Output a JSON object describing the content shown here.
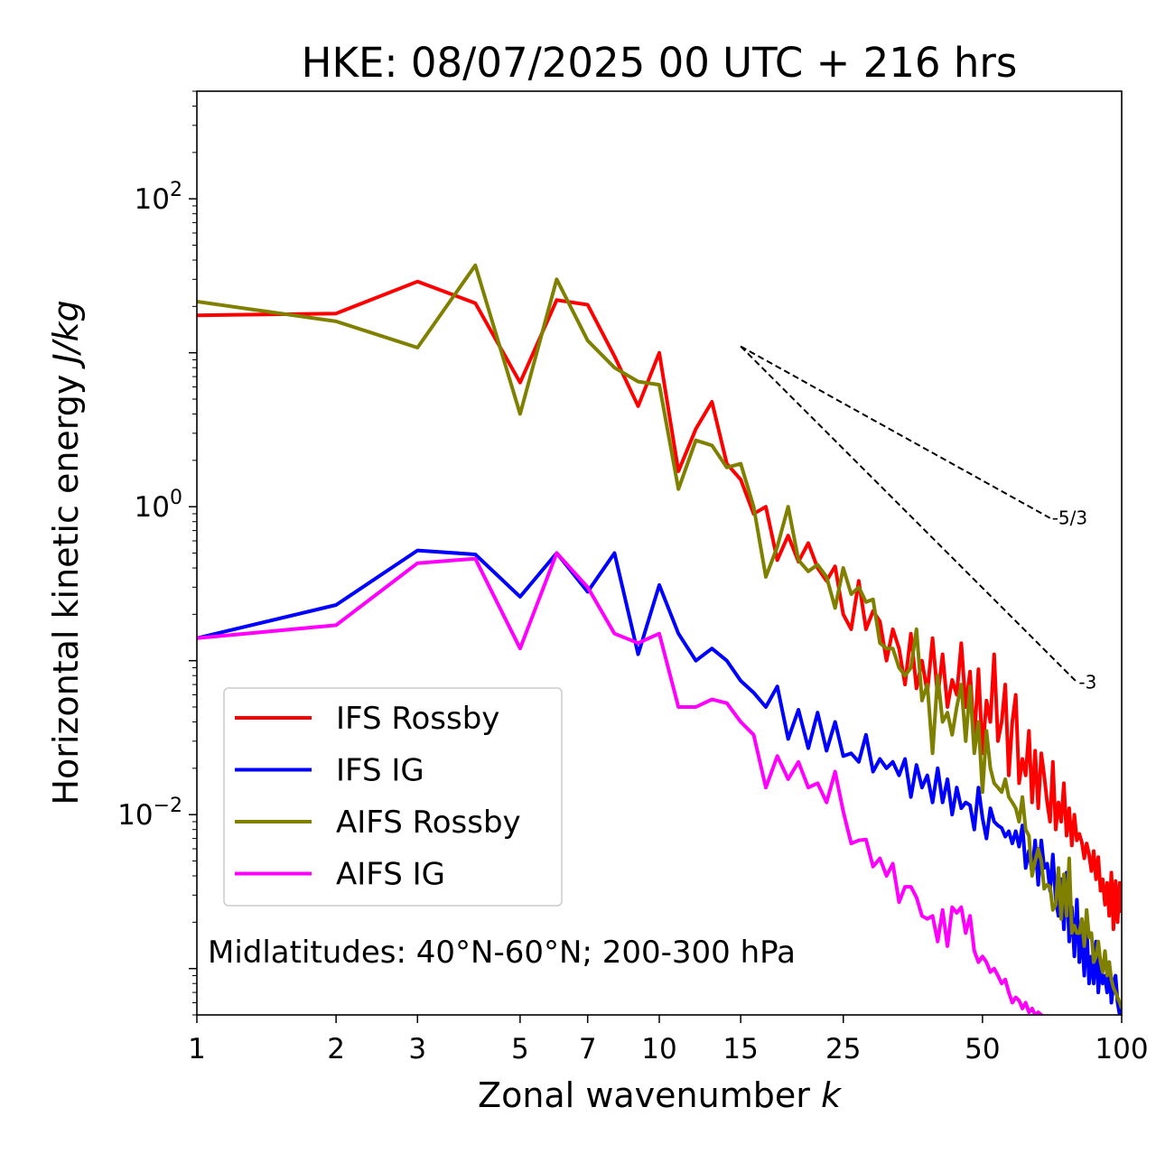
{
  "chart_data": {
    "type": "line",
    "title": "HKE: 08/07/2025 00 UTC + 216 hrs",
    "xlabel": "Zonal wavenumber",
    "xlabel_symbol": "k",
    "ylabel": "Horizontal kinetic energy",
    "ylabel_unit": "J/kg",
    "xscale": "log",
    "yscale": "log",
    "xlim": [
      1,
      100
    ],
    "ylim": [
      0.0005,
      500
    ],
    "x_ticks": [
      1,
      2,
      3,
      5,
      7,
      10,
      15,
      25,
      50,
      100
    ],
    "x_tick_labels": [
      "1",
      "2",
      "3",
      "5",
      "7",
      "10",
      "15",
      "25",
      "50",
      "100"
    ],
    "y_ticks": [
      {
        "value": 100,
        "base": "10",
        "exp": "2"
      },
      {
        "value": 1,
        "base": "10",
        "exp": "0"
      },
      {
        "value": 0.01,
        "base": "10",
        "exp": "−2"
      }
    ],
    "grid": false,
    "legend_position": "lower-left",
    "annotation": "Midlatitudes: 40°N-60°N; 200-300 hPa",
    "reference_slopes": [
      {
        "label": "-5/3",
        "slope": -1.6667,
        "x0": 15,
        "y0": 11,
        "x1": 70
      },
      {
        "label": "-3",
        "slope": -3,
        "x0": 15,
        "y0": 11,
        "x1": 80
      }
    ],
    "series": [
      {
        "name": "IFS Rossby",
        "color": "#ff0000",
        "x": [
          1,
          2,
          3,
          4,
          5,
          6,
          7,
          8,
          9,
          10,
          11,
          12,
          13,
          14,
          15,
          16,
          17,
          18,
          19,
          20,
          21,
          22,
          23,
          24,
          25,
          26,
          27,
          28,
          29,
          30,
          31,
          32,
          33,
          34,
          35,
          36,
          37,
          38,
          39,
          40,
          41,
          42,
          43,
          44,
          45,
          46,
          47,
          48,
          49,
          50,
          51,
          52,
          53,
          54,
          55,
          56,
          57,
          58,
          59,
          60,
          61,
          62,
          63,
          64,
          65,
          66,
          67,
          68,
          69,
          70,
          71,
          72,
          73,
          74,
          75,
          76,
          77,
          78,
          79,
          80,
          81,
          82,
          83,
          84,
          85,
          86,
          87,
          88,
          89,
          90,
          91,
          92,
          93,
          94,
          95,
          96,
          97,
          98,
          99,
          100
        ],
        "y": [
          17.5,
          18,
          29,
          21,
          6.4,
          22,
          20.5,
          9.5,
          4.5,
          10,
          1.7,
          3.2,
          4.8,
          1.9,
          1.5,
          0.9,
          1,
          0.45,
          0.65,
          0.44,
          0.58,
          0.4,
          0.33,
          0.41,
          0.2,
          0.16,
          0.33,
          0.16,
          0.21,
          0.18,
          0.1,
          0.16,
          0.12,
          0.07,
          0.15,
          0.066,
          0.1,
          0.062,
          0.14,
          0.058,
          0.11,
          0.05,
          0.075,
          0.06,
          0.13,
          0.05,
          0.085,
          0.03,
          0.088,
          0.025,
          0.055,
          0.04,
          0.11,
          0.03,
          0.04,
          0.07,
          0.018,
          0.04,
          0.06,
          0.016,
          0.023,
          0.018,
          0.035,
          0.012,
          0.026,
          0.011,
          0.025,
          0.018,
          0.012,
          0.009,
          0.022,
          0.008,
          0.012,
          0.009,
          0.016,
          0.0073,
          0.011,
          0.0063,
          0.01,
          0.0068,
          0.0075,
          0.0066,
          0.0052,
          0.0065,
          0.0055,
          0.0043,
          0.0058,
          0.0038,
          0.0053,
          0.0032,
          0.0038,
          0.0026,
          0.0036,
          0.0022,
          0.0042,
          0.0018,
          0.0037,
          0.002,
          0.0036,
          0.0023
        ]
      },
      {
        "name": "IFS IG",
        "color": "#0000ff",
        "x": [
          1,
          2,
          3,
          4,
          5,
          6,
          7,
          8,
          9,
          10,
          11,
          12,
          13,
          14,
          15,
          16,
          17,
          18,
          19,
          20,
          21,
          22,
          23,
          24,
          25,
          26,
          27,
          28,
          29,
          30,
          31,
          32,
          33,
          34,
          35,
          36,
          37,
          38,
          39,
          40,
          41,
          42,
          43,
          44,
          45,
          46,
          47,
          48,
          49,
          50,
          51,
          52,
          53,
          54,
          55,
          56,
          57,
          58,
          59,
          60,
          61,
          62,
          63,
          64,
          65,
          66,
          67,
          68,
          69,
          70,
          71,
          72,
          73,
          74,
          75,
          76,
          77,
          78,
          79,
          80,
          81,
          82,
          83,
          84,
          85,
          86,
          87,
          88,
          89,
          90,
          91,
          92,
          93,
          94,
          95,
          96,
          97,
          98,
          99,
          100
        ],
        "y": [
          0.14,
          0.23,
          0.52,
          0.49,
          0.26,
          0.5,
          0.28,
          0.5,
          0.11,
          0.31,
          0.15,
          0.1,
          0.12,
          0.1,
          0.074,
          0.062,
          0.05,
          0.068,
          0.031,
          0.048,
          0.027,
          0.046,
          0.026,
          0.04,
          0.024,
          0.025,
          0.022,
          0.033,
          0.019,
          0.023,
          0.02,
          0.022,
          0.018,
          0.023,
          0.013,
          0.021,
          0.015,
          0.018,
          0.012,
          0.02,
          0.012,
          0.017,
          0.01,
          0.015,
          0.011,
          0.012,
          0.0115,
          0.008,
          0.015,
          0.0095,
          0.007,
          0.011,
          0.009,
          0.0085,
          0.0082,
          0.0072,
          0.0078,
          0.0065,
          0.0078,
          0.0062,
          0.0085,
          0.0045,
          0.0058,
          0.0042,
          0.0068,
          0.0035,
          0.0068,
          0.0045,
          0.0048,
          0.0032,
          0.0055,
          0.0028,
          0.0022,
          0.0038,
          0.0018,
          0.0042,
          0.0015,
          0.0025,
          0.0012,
          0.0028,
          0.0011,
          0.0017,
          0.0009,
          0.0019,
          0.0008,
          0.0012,
          0.0008,
          0.0015,
          0.0007,
          0.0011,
          0.0008,
          0.0009,
          0.0007,
          0.0011,
          0.0006,
          0.0008,
          0.0009,
          0.0006,
          0.0005,
          0.0006
        ]
      },
      {
        "name": "AIFS Rossby",
        "color": "#808000",
        "x": [
          1,
          2,
          3,
          4,
          5,
          6,
          7,
          8,
          9,
          10,
          11,
          12,
          13,
          14,
          15,
          16,
          17,
          18,
          19,
          20,
          21,
          22,
          23,
          24,
          25,
          26,
          27,
          28,
          29,
          30,
          31,
          32,
          33,
          34,
          35,
          36,
          37,
          38,
          39,
          40,
          41,
          42,
          43,
          44,
          45,
          46,
          47,
          48,
          49,
          50,
          51,
          52,
          53,
          54,
          55,
          56,
          57,
          58,
          59,
          60,
          61,
          62,
          63,
          64,
          65,
          66,
          67,
          68,
          69,
          70,
          71,
          72,
          73,
          74,
          75,
          76,
          77,
          78,
          79,
          80,
          81,
          82,
          83,
          84,
          85,
          86,
          87,
          88,
          89,
          90,
          91,
          92,
          93,
          94,
          95,
          96,
          97,
          98,
          99,
          100
        ],
        "y": [
          21.5,
          16,
          10.8,
          37,
          4,
          30,
          12,
          8,
          6.5,
          6.2,
          1.3,
          2.7,
          2.5,
          1.8,
          1.9,
          1.0,
          0.35,
          0.55,
          1,
          0.45,
          0.38,
          0.42,
          0.35,
          0.22,
          0.4,
          0.27,
          0.3,
          0.24,
          0.25,
          0.13,
          0.12,
          0.12,
          0.09,
          0.08,
          0.09,
          0.16,
          0.055,
          0.07,
          0.025,
          0.08,
          0.04,
          0.046,
          0.033,
          0.05,
          0.07,
          0.03,
          0.068,
          0.025,
          0.04,
          0.014,
          0.035,
          0.02,
          0.016,
          0.015,
          0.014,
          0.017,
          0.013,
          0.012,
          0.011,
          0.009,
          0.013,
          0.008,
          0.0073,
          0.004,
          0.005,
          0.006,
          0.005,
          0.0033,
          0.0035,
          0.0034,
          0.0024,
          0.0026,
          0.0045,
          0.0021,
          0.0041,
          0.0022,
          0.0052,
          0.0017,
          0.0019,
          0.0017,
          0.0017,
          0.0021,
          0.0014,
          0.0024,
          0.0016,
          0.0017,
          0.0011,
          0.0012,
          0.0015,
          0.0011,
          0.00095,
          0.0013,
          0.0009,
          0.0011,
          0.00085,
          0.00075,
          0.0007,
          0.00065,
          0.0006,
          0.00055
        ]
      },
      {
        "name": "AIFS IG",
        "color": "#ff00ff",
        "x": [
          1,
          2,
          3,
          4,
          5,
          6,
          7,
          8,
          9,
          10,
          11,
          12,
          13,
          14,
          15,
          16,
          17,
          18,
          19,
          20,
          21,
          22,
          23,
          24,
          25,
          26,
          27,
          28,
          29,
          30,
          31,
          32,
          33,
          34,
          35,
          36,
          37,
          38,
          39,
          40,
          41,
          42,
          43,
          44,
          45,
          46,
          47,
          48,
          49,
          50,
          51,
          52,
          53,
          54,
          55,
          56,
          57,
          58,
          59,
          60,
          61,
          62,
          63,
          64,
          65,
          66,
          67,
          68,
          69,
          70
        ],
        "y": [
          0.14,
          0.17,
          0.43,
          0.46,
          0.12,
          0.5,
          0.3,
          0.15,
          0.13,
          0.15,
          0.05,
          0.05,
          0.056,
          0.053,
          0.04,
          0.033,
          0.015,
          0.024,
          0.017,
          0.022,
          0.015,
          0.016,
          0.012,
          0.019,
          0.0105,
          0.0065,
          0.0068,
          0.0069,
          0.0046,
          0.0052,
          0.004,
          0.0048,
          0.0027,
          0.0034,
          0.0034,
          0.0029,
          0.0022,
          0.0021,
          0.0022,
          0.0015,
          0.0024,
          0.0014,
          0.0025,
          0.0023,
          0.0025,
          0.0017,
          0.0022,
          0.0013,
          0.0011,
          0.0012,
          0.0011,
          0.00095,
          0.001,
          0.0009,
          0.0008,
          0.00085,
          0.0007,
          0.0006,
          0.00065,
          0.00062,
          0.00055,
          0.0006,
          0.00052,
          0.00055,
          0.0005,
          0.00052,
          0.0005,
          0.00048,
          0.00046,
          0.00045
        ]
      }
    ]
  }
}
